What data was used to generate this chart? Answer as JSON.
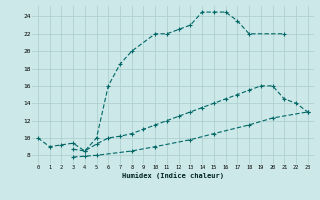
{
  "xlabel": "Humidex (Indice chaleur)",
  "bg_color": "#cce8e8",
  "grid_color": "#b0d0d0",
  "line_color": "#006666",
  "line1_x": [
    0,
    1,
    2,
    3,
    4,
    5,
    6,
    7,
    8,
    10,
    11,
    12,
    13,
    14,
    15,
    16,
    17,
    18,
    21
  ],
  "line1_y": [
    10,
    9,
    9.2,
    9.4,
    8.5,
    10.0,
    16.0,
    18.5,
    20.0,
    22.0,
    22.0,
    22.5,
    23.0,
    24.5,
    24.5,
    24.5,
    23.5,
    22.0,
    22.0
  ],
  "line2_x": [
    3,
    4,
    5,
    6,
    7,
    8,
    9,
    10,
    11,
    12,
    13,
    14,
    15,
    16,
    17,
    18,
    19,
    20,
    21,
    22,
    23
  ],
  "line2_y": [
    8.7,
    8.5,
    9.3,
    10.0,
    10.2,
    10.5,
    11.0,
    11.5,
    12.0,
    12.5,
    13.0,
    13.5,
    14.0,
    14.5,
    15.0,
    15.5,
    16.0,
    16.0,
    14.5,
    14.0,
    13.0
  ],
  "line3_x": [
    3,
    4,
    5,
    8,
    10,
    13,
    15,
    18,
    20,
    23
  ],
  "line3_y": [
    7.8,
    7.9,
    8.0,
    8.5,
    9.0,
    9.8,
    10.5,
    11.5,
    12.3,
    13.0
  ],
  "xlim": [
    -0.5,
    23.5
  ],
  "ylim": [
    7.0,
    25.2
  ],
  "xticks": [
    0,
    1,
    2,
    3,
    4,
    5,
    6,
    7,
    8,
    9,
    10,
    11,
    12,
    13,
    14,
    15,
    16,
    17,
    18,
    19,
    20,
    21,
    22,
    23
  ],
  "yticks": [
    8,
    10,
    12,
    14,
    16,
    18,
    20,
    22,
    24
  ],
  "xtick_labels": [
    "0",
    "1",
    "2",
    "3",
    "4",
    "5",
    "6",
    "7",
    "8",
    "9",
    "10",
    "11",
    "12",
    "13",
    "14",
    "15",
    "16",
    "17",
    "18",
    "19",
    "20",
    "21",
    "22",
    "23"
  ],
  "ytick_labels": [
    "8",
    "10",
    "12",
    "14",
    "16",
    "18",
    "20",
    "22",
    "24"
  ]
}
